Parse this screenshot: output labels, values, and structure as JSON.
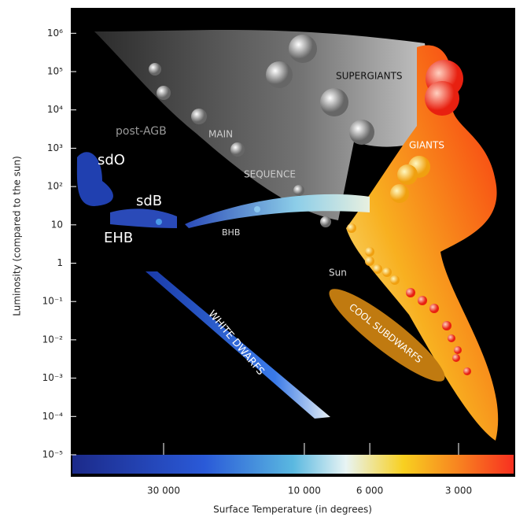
{
  "axes": {
    "y": {
      "label": "Luminosity (compared to the sun)",
      "ticks": [
        {
          "value": 1000000,
          "label": "10⁶"
        },
        {
          "value": 100000,
          "label": "10⁵"
        },
        {
          "value": 10000,
          "label": "10⁴"
        },
        {
          "value": 1000,
          "label": "10³"
        },
        {
          "value": 100,
          "label": "10²"
        },
        10,
        1,
        {
          "value": 0.1,
          "label": "10⁻¹"
        },
        {
          "value": 0.01,
          "label": "10⁻²"
        },
        {
          "value": 0.001,
          "label": "10⁻³"
        },
        {
          "value": 0.0001,
          "label": "10⁻⁴"
        },
        {
          "value": 1e-05,
          "label": "10⁻⁵"
        }
      ]
    },
    "x": {
      "label": "Surface Temperature (in degrees)",
      "ticks": [
        {
          "value": 30000,
          "label": "30 000"
        },
        {
          "value": 10000,
          "label": "10 000"
        },
        {
          "value": 6000,
          "label": "6 000"
        },
        {
          "value": 3000,
          "label": "3 000"
        }
      ]
    }
  },
  "regions": {
    "post_agb": "post-AGB",
    "main": "MAIN",
    "sequence": "SEQUENCE",
    "supergiants": "SUPERGIANTS",
    "giants": "GIANTS",
    "sdo": "sdO",
    "sdb": "sdB",
    "ehb": "EHB",
    "bhb": "BHB",
    "sun": "Sun",
    "white_dwarfs": "WHITE DWARFS",
    "cool_subdwarfs": "COOL SUBDWARFS"
  }
}
